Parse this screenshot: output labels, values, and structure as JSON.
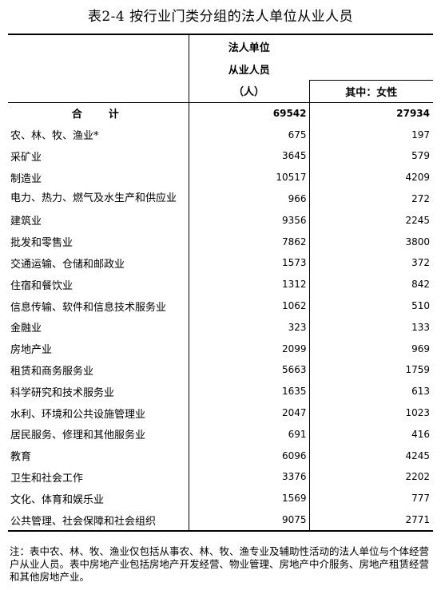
{
  "title": "表2-4  按行业门类分组的法人单位从业人员",
  "header": {
    "col2_line1": "法人单位",
    "col2_line2": "从业人员",
    "col2_line3": "（人）",
    "col3_sub": "其中：女性"
  },
  "rows": [
    {
      "name": "合　计",
      "total": "69542",
      "female": "27934"
    },
    {
      "name": "农、林、牧、渔业*",
      "total": "675",
      "female": "197"
    },
    {
      "name": "采矿业",
      "total": "3645",
      "female": "579"
    },
    {
      "name": "制造业",
      "total": "10517",
      "female": "4209"
    },
    {
      "name": "电力、热力、燃气及水生产和供应业",
      "total": "966",
      "female": "272"
    },
    {
      "name": "建筑业",
      "total": "9356",
      "female": "2245"
    },
    {
      "name": "批发和零售业",
      "total": "7862",
      "female": "3800"
    },
    {
      "name": "交通运输、仓储和邮政业",
      "total": "1573",
      "female": "372"
    },
    {
      "name": "住宿和餐饮业",
      "total": "1312",
      "female": "842"
    },
    {
      "name": "信息传输、软件和信息技术服务业",
      "total": "1062",
      "female": "510"
    },
    {
      "name": "金融业",
      "total": "323",
      "female": "133"
    },
    {
      "name": "房地产业",
      "total": "2099",
      "female": "969"
    },
    {
      "name": "租赁和商务服务业",
      "total": "5663",
      "female": "1759"
    },
    {
      "name": "科学研究和技术服务业",
      "total": "1635",
      "female": "613"
    },
    {
      "name": "水利、环境和公共设施管理业",
      "total": "2047",
      "female": "1023"
    },
    {
      "name": "居民服务、修理和其他服务业",
      "total": "691",
      "female": "416"
    },
    {
      "name": "教育",
      "total": "6096",
      "female": "4245"
    },
    {
      "name": "卫生和社会工作",
      "total": "3376",
      "female": "2202"
    },
    {
      "name": "文化、体育和娱乐业",
      "total": "1569",
      "female": "777"
    },
    {
      "name": "公共管理、社会保障和社会组织",
      "total": "9075",
      "female": "2771"
    }
  ],
  "note": "注：表中农、林、牧、渔业仅包括从事农、林、牧、渔专业及辅助性活动的法人单位与个体经营户从业人员。表中房地产业包括房地产开发经营、物业管理、房地产中介服务、房地产租赁经营和其他房地产业。"
}
